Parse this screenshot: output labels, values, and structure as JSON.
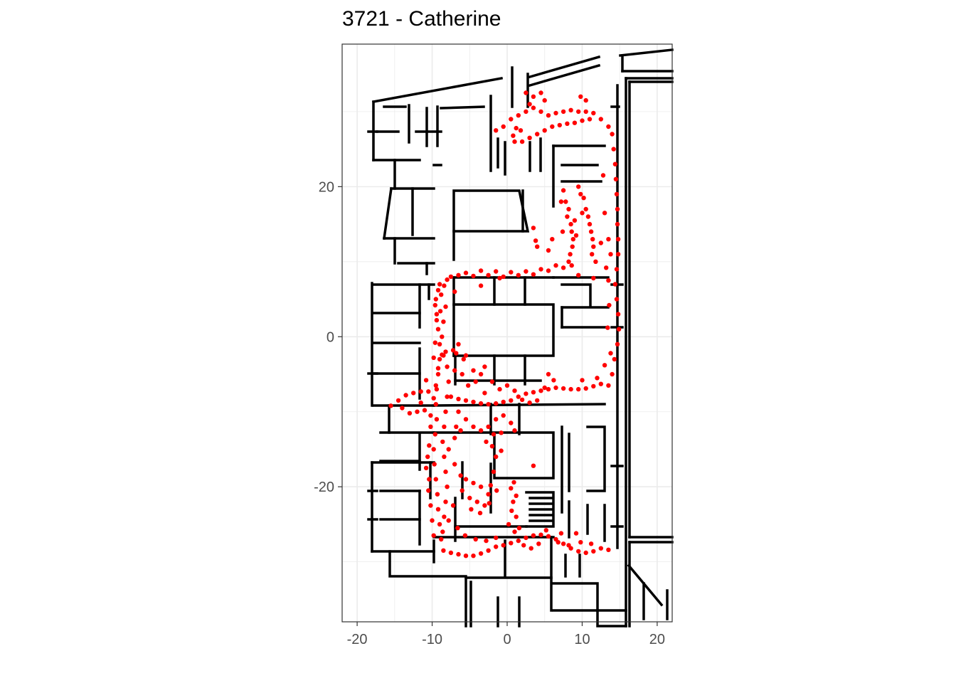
{
  "chart_data": {
    "type": "scatter",
    "title": "3721 - Catherine",
    "xlabel": "",
    "ylabel": "",
    "xlim": [
      -22,
      22
    ],
    "ylim": [
      -38,
      39
    ],
    "x_ticks": [
      -20,
      -10,
      0,
      10,
      20
    ],
    "y_ticks": [
      20,
      0,
      -20
    ],
    "x_tick_labels": [
      "-20",
      "-10",
      "0",
      "10",
      "20"
    ],
    "y_tick_labels": [
      "20",
      "0",
      "-20"
    ],
    "grid": true,
    "point_color": "#ff0000",
    "wall_color": "#000000",
    "grid_color": "#ebebeb",
    "series": [
      {
        "values": [
          [
            -1.5,
            27.5
          ],
          [
            -0.5,
            28
          ],
          [
            0.5,
            29
          ],
          [
            1.5,
            29.5
          ],
          [
            2.5,
            30
          ],
          [
            3.5,
            30.5
          ],
          [
            4.5,
            30
          ],
          [
            5.5,
            29.5
          ],
          [
            6.5,
            29.8
          ],
          [
            7.5,
            30
          ],
          [
            8.5,
            30.2
          ],
          [
            9.5,
            30
          ],
          [
            10.5,
            30
          ],
          [
            11.5,
            29.8
          ],
          [
            12.5,
            29
          ],
          [
            13.5,
            28
          ],
          [
            14,
            27
          ],
          [
            1,
            26
          ],
          [
            2,
            26
          ],
          [
            3,
            26.5
          ],
          [
            4,
            27
          ],
          [
            5,
            27.5
          ],
          [
            6,
            28
          ],
          [
            7,
            28.2
          ],
          [
            8,
            28.4
          ],
          [
            9,
            28.5
          ],
          [
            10,
            28.8
          ],
          [
            11,
            29
          ],
          [
            2.5,
            32.5
          ],
          [
            3.5,
            32
          ],
          [
            4.5,
            32.5
          ],
          [
            9.8,
            32
          ],
          [
            10.5,
            31.5
          ],
          [
            1.8,
            27.5
          ],
          [
            0.8,
            26.8
          ],
          [
            3,
            31
          ],
          [
            5,
            31.5
          ],
          [
            1.2,
            27.8
          ],
          [
            14.2,
            25
          ],
          [
            14.4,
            23
          ],
          [
            14.5,
            21
          ],
          [
            14.6,
            19
          ],
          [
            14.7,
            17
          ],
          [
            14.7,
            15
          ],
          [
            14.8,
            13
          ],
          [
            14.8,
            11
          ],
          [
            14.6,
            9
          ],
          [
            14.4,
            7
          ],
          [
            14.6,
            5
          ],
          [
            14.8,
            3
          ],
          [
            14.9,
            1
          ],
          [
            14.7,
            -1
          ],
          [
            14.3,
            -3
          ],
          [
            14,
            -5
          ],
          [
            13.5,
            -6.5
          ],
          [
            7.5,
            19.5
          ],
          [
            7.8,
            18
          ],
          [
            8.2,
            17
          ],
          [
            8,
            16
          ],
          [
            8.5,
            15
          ],
          [
            8.6,
            14
          ],
          [
            8.8,
            13
          ],
          [
            8.7,
            12
          ],
          [
            8.4,
            11
          ],
          [
            8.2,
            10
          ],
          [
            8.6,
            9.5
          ],
          [
            9.5,
            20
          ],
          [
            9.8,
            19
          ],
          [
            10.2,
            18.5
          ],
          [
            10.5,
            17
          ],
          [
            10.8,
            16
          ],
          [
            11,
            15
          ],
          [
            11.2,
            14
          ],
          [
            11.4,
            13
          ],
          [
            11.5,
            12
          ],
          [
            11.3,
            11
          ],
          [
            11.8,
            10
          ],
          [
            7.2,
            18
          ],
          [
            7.4,
            14
          ],
          [
            9,
            15.5
          ],
          [
            9.2,
            13.5
          ],
          [
            10,
            16.5
          ],
          [
            12.5,
            12.5
          ],
          [
            13.5,
            13
          ],
          [
            13.8,
            11
          ],
          [
            3.5,
            14.5
          ],
          [
            3.8,
            12.8
          ],
          [
            4,
            12
          ],
          [
            6.5,
            9.5
          ],
          [
            4.5,
            9
          ],
          [
            2.5,
            8.7
          ],
          [
            0.5,
            8.6
          ],
          [
            -1.5,
            8.7
          ],
          [
            -3.5,
            8.8
          ],
          [
            -5.5,
            8.5
          ],
          [
            -7.5,
            8
          ],
          [
            -9,
            7
          ],
          [
            -9.5,
            5
          ],
          [
            -9.4,
            3
          ],
          [
            -9.2,
            1
          ],
          [
            -9,
            -1
          ],
          [
            -9,
            -3
          ],
          [
            -9.2,
            -5
          ],
          [
            -9.4,
            -7
          ],
          [
            -9.5,
            -9
          ],
          [
            -9.4,
            -11
          ],
          [
            -9.6,
            -13
          ],
          [
            -9.8,
            -15
          ],
          [
            -9.7,
            -17
          ],
          [
            -9.5,
            -19
          ],
          [
            -9.3,
            -21
          ],
          [
            -9.2,
            -23
          ],
          [
            -9,
            -25
          ],
          [
            -8.8,
            -27
          ],
          [
            -8.5,
            -28.5
          ],
          [
            -7.5,
            -28.8
          ],
          [
            -6.5,
            -29
          ],
          [
            -5.5,
            -29.2
          ],
          [
            -4.5,
            -29.2
          ],
          [
            -3.5,
            -28.9
          ],
          [
            -2.5,
            -28.5
          ],
          [
            -1.5,
            -28
          ],
          [
            -0.5,
            -27.8
          ],
          [
            0.5,
            -27.5
          ],
          [
            1.5,
            -27.2
          ],
          [
            2.5,
            -26.8
          ],
          [
            3.5,
            -26.5
          ],
          [
            4.5,
            -26.4
          ],
          [
            5.5,
            -26.6
          ],
          [
            6.5,
            -27
          ],
          [
            7.5,
            -27.6
          ],
          [
            8.5,
            -28.2
          ],
          [
            9.5,
            -28.6
          ],
          [
            10.5,
            -28.8
          ],
          [
            11.5,
            -28.6
          ],
          [
            12.5,
            -28.2
          ],
          [
            13.5,
            -28.4
          ],
          [
            -8.2,
            -2
          ],
          [
            -8,
            -4
          ],
          [
            -7.8,
            -6
          ],
          [
            -8,
            -8
          ],
          [
            -8.2,
            -10
          ],
          [
            -8.4,
            -12
          ],
          [
            -8.6,
            -14
          ],
          [
            -8.4,
            -16
          ],
          [
            -8.2,
            -18
          ],
          [
            -8,
            -20
          ],
          [
            -8.2,
            -22
          ],
          [
            -8.4,
            -24
          ],
          [
            -8.6,
            -26
          ],
          [
            -7,
            6
          ],
          [
            -8.2,
            4
          ],
          [
            -8.5,
            2
          ],
          [
            -8.7,
            0
          ],
          [
            -8.5,
            -2.5
          ],
          [
            -6.5,
            8.2
          ],
          [
            -4.5,
            8.1
          ],
          [
            -2.5,
            8.2
          ],
          [
            -0.5,
            8
          ],
          [
            1.5,
            8.2
          ],
          [
            3.5,
            8.3
          ],
          [
            5.5,
            8.8
          ],
          [
            7.5,
            9.2
          ],
          [
            9.5,
            8.2
          ],
          [
            11.5,
            7.8
          ],
          [
            13.5,
            7.5
          ],
          [
            -7.5,
            -8
          ],
          [
            -6.5,
            -8.3
          ],
          [
            -5.5,
            -8.5
          ],
          [
            -4.5,
            -8.7
          ],
          [
            -3.5,
            -8.9
          ],
          [
            -2.5,
            -9
          ],
          [
            -1.5,
            -8.9
          ],
          [
            -0.5,
            -8.7
          ],
          [
            0.5,
            -8.5
          ],
          [
            1.5,
            -8
          ],
          [
            2.5,
            -7.6
          ],
          [
            3.5,
            -7.4
          ],
          [
            4.5,
            -7.2
          ],
          [
            5.5,
            -7
          ],
          [
            6.5,
            -6.8
          ],
          [
            7.5,
            -6.9
          ],
          [
            8.5,
            -7
          ],
          [
            9.5,
            -7
          ],
          [
            10.5,
            -6.9
          ],
          [
            11.5,
            -6.6
          ],
          [
            12.5,
            -6.3
          ],
          [
            -6,
            -5
          ],
          [
            -5.8,
            -3
          ],
          [
            -5.2,
            -6.5
          ],
          [
            -4.2,
            -6
          ],
          [
            -3.5,
            -5
          ],
          [
            -3,
            -7.5
          ],
          [
            -2,
            -6
          ],
          [
            -1,
            -7
          ],
          [
            0,
            -6.5
          ],
          [
            1,
            -7.2
          ],
          [
            2,
            -8.4
          ],
          [
            3,
            -8.8
          ],
          [
            4,
            -8.5
          ],
          [
            5,
            -6.8
          ],
          [
            5.5,
            -5
          ],
          [
            6.2,
            -5.8
          ],
          [
            -6.5,
            -10
          ],
          [
            -5.5,
            -11
          ],
          [
            -4.5,
            -12
          ],
          [
            -3.5,
            -12.5
          ],
          [
            -2.5,
            -12
          ],
          [
            -1.5,
            -11
          ],
          [
            -0.5,
            -10.5
          ],
          [
            0.5,
            -11.5
          ],
          [
            1,
            -12.5
          ],
          [
            -7,
            -13.5
          ],
          [
            -6.8,
            -12
          ],
          [
            -2.8,
            -14
          ],
          [
            -1.8,
            -13
          ],
          [
            -0.8,
            -12.8
          ],
          [
            -5.5,
            -19
          ],
          [
            -4.5,
            -19.5
          ],
          [
            -3.5,
            -20
          ],
          [
            -2.5,
            -21
          ],
          [
            -3,
            -22.5
          ],
          [
            -4,
            -22
          ],
          [
            -5,
            -21.5
          ],
          [
            -6,
            -20.5
          ],
          [
            -2.2,
            -19.8
          ],
          [
            -4.8,
            -23
          ],
          [
            -3.6,
            -23.5
          ],
          [
            -2.4,
            -22.2
          ],
          [
            -1.5,
            -16
          ],
          [
            -1.8,
            -18
          ],
          [
            -2,
            -14.6
          ],
          [
            -1.4,
            -20.5
          ],
          [
            -0.8,
            -15.2
          ],
          [
            3.5,
            -17.2
          ],
          [
            0.5,
            -20.2
          ],
          [
            0.8,
            -22
          ],
          [
            1.2,
            -24
          ],
          [
            1,
            -26
          ],
          [
            0.2,
            -25
          ],
          [
            1.6,
            -25.5
          ],
          [
            -14.5,
            -8.5
          ],
          [
            -13.5,
            -7.8
          ],
          [
            -12.5,
            -7.5
          ],
          [
            -11.5,
            -7.3
          ],
          [
            -10.5,
            -7.3
          ],
          [
            -15.5,
            -9.2
          ],
          [
            -14,
            -9.5
          ],
          [
            -13,
            -10.2
          ],
          [
            -12,
            -10
          ],
          [
            -11,
            -9.8
          ],
          [
            -10.2,
            -10.5
          ],
          [
            -10.8,
            -5.8
          ],
          [
            -11.5,
            -8.8
          ],
          [
            -9.5,
            -6.5
          ],
          [
            -9.2,
            -4.2
          ],
          [
            -8.7,
            -2.4
          ],
          [
            -9.8,
            -8.2
          ],
          [
            -10.2,
            -12
          ],
          [
            -10.4,
            -14.5
          ],
          [
            -10.6,
            -16
          ],
          [
            -10.8,
            -17.5
          ],
          [
            -10.5,
            -20.5
          ],
          [
            -10.2,
            -22.5
          ],
          [
            -10,
            -24.5
          ],
          [
            -9.8,
            -26.5
          ],
          [
            -10.4,
            -19
          ],
          [
            -7,
            -4.5
          ],
          [
            -6.8,
            -2.2
          ],
          [
            -6.5,
            -1
          ],
          [
            -7.2,
            -1.8
          ],
          [
            -5.5,
            -2.5
          ],
          [
            -4.5,
            -4.5
          ],
          [
            -3,
            -4
          ],
          [
            -6.2,
            -12.5
          ],
          [
            -7.8,
            -15
          ],
          [
            -7,
            -17
          ],
          [
            -6.2,
            -18.5
          ],
          [
            -7.2,
            -22.5
          ],
          [
            -7.8,
            -24.5
          ],
          [
            -6.6,
            -25.5
          ],
          [
            -5.6,
            -26.5
          ],
          [
            -4.2,
            -27
          ],
          [
            -2.8,
            -27.2
          ],
          [
            -1.5,
            -26.8
          ],
          [
            -3.5,
            6.8
          ],
          [
            -1,
            7.8
          ],
          [
            6,
            13
          ],
          [
            5.5,
            11.5
          ],
          [
            12.8,
            21.5
          ],
          [
            13,
            16.5
          ],
          [
            13.2,
            9.2
          ],
          [
            13.6,
            4.2
          ],
          [
            13.4,
            1.2
          ],
          [
            13.8,
            -2.2
          ],
          [
            13,
            -3.8
          ],
          [
            12,
            -5.5
          ],
          [
            10,
            -5.8
          ],
          [
            8.2,
            -27.8
          ],
          [
            9.2,
            -26.2
          ],
          [
            7.2,
            -26.2
          ],
          [
            9.8,
            -27.4
          ],
          [
            11.2,
            -27.6
          ],
          [
            2.2,
            -27.8
          ],
          [
            3.2,
            -28.2
          ],
          [
            5.2,
            -25.8
          ],
          [
            4.2,
            -27.6
          ],
          [
            6.8,
            -27.4
          ],
          [
            0.6,
            -23.2
          ],
          [
            1.2,
            -21.2
          ],
          [
            0.9,
            -19.4
          ],
          [
            -9.2,
            6.2
          ],
          [
            -9.6,
            4.2
          ],
          [
            -9.4,
            2.2
          ],
          [
            -9.6,
            -0.8
          ],
          [
            -9.8,
            -2.8
          ],
          [
            -8.9,
            3.4
          ],
          [
            -8.8,
            5.6
          ],
          [
            -8.4,
            6.8
          ],
          [
            -8,
            7.6
          ]
        ]
      }
    ]
  }
}
